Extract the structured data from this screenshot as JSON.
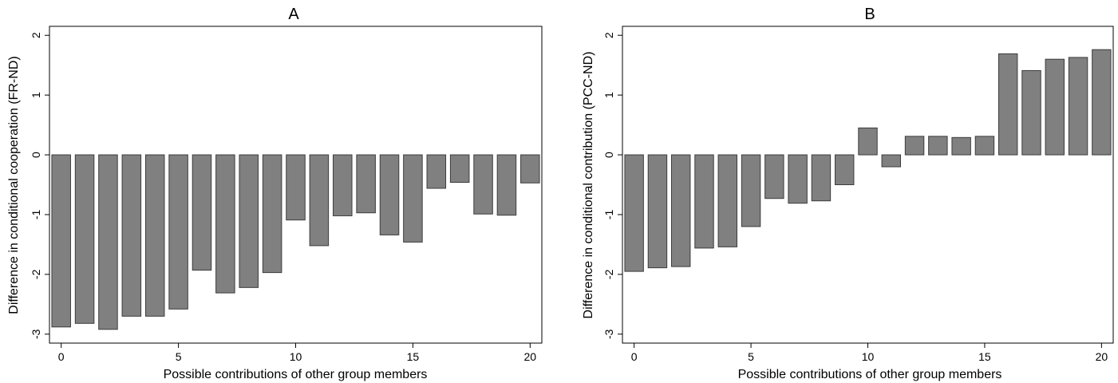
{
  "chart_data": [
    {
      "type": "bar",
      "title": "A",
      "xlabel": "Possible contributions of other group members",
      "ylabel": "Difference in conditional cooperation (FR-ND)",
      "x": [
        0,
        1,
        2,
        3,
        4,
        5,
        6,
        7,
        8,
        9,
        10,
        11,
        12,
        13,
        14,
        15,
        16,
        17,
        18,
        19,
        20
      ],
      "values": [
        -2.88,
        -2.82,
        -2.92,
        -2.7,
        -2.7,
        -2.58,
        -1.93,
        -2.31,
        -2.22,
        -1.97,
        -1.09,
        -1.52,
        -1.02,
        -0.97,
        -1.34,
        -1.46,
        -0.56,
        -0.46,
        -0.99,
        -1.01,
        -0.47
      ],
      "xticks": [
        0,
        5,
        10,
        15,
        20
      ],
      "yticks": [
        -3,
        -2,
        -1,
        0,
        1,
        2
      ],
      "xlim": [
        -0.5,
        20.5
      ],
      "ylim": [
        -3.15,
        2.15
      ],
      "bar_color": "#808080",
      "grid": false
    },
    {
      "type": "bar",
      "title": "B",
      "xlabel": "Possible contributions of other group members",
      "ylabel": "Difference in conditional contribution (PCC-ND)",
      "x": [
        0,
        1,
        2,
        3,
        4,
        5,
        6,
        7,
        8,
        9,
        10,
        11,
        12,
        13,
        14,
        15,
        16,
        17,
        18,
        19,
        20
      ],
      "values": [
        -1.95,
        -1.89,
        -1.87,
        -1.56,
        -1.54,
        -1.2,
        -0.73,
        -0.81,
        -0.77,
        -0.5,
        0.45,
        -0.2,
        0.31,
        0.31,
        0.29,
        0.31,
        1.69,
        1.41,
        1.6,
        1.63,
        1.76
      ],
      "xticks": [
        0,
        5,
        10,
        15,
        20
      ],
      "yticks": [
        -3,
        -2,
        -1,
        0,
        1,
        2
      ],
      "xlim": [
        -0.5,
        20.5
      ],
      "ylim": [
        -3.15,
        2.15
      ],
      "bar_color": "#808080",
      "grid": false
    }
  ]
}
